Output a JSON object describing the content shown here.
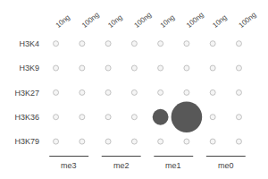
{
  "chart_data": {
    "type": "dot_matrix",
    "rows": [
      "H3K4",
      "H3K9",
      "H3K27",
      "H3K36",
      "H3K79"
    ],
    "categories": [
      "10ng",
      "100ng",
      "10ng",
      "100ng",
      "10ng",
      "100ng",
      "10ng",
      "100ng"
    ],
    "groups": [
      "me3",
      "me2",
      "me1",
      "me0"
    ],
    "sizes": [
      [
        null,
        null,
        null,
        null,
        null,
        null,
        null,
        null
      ],
      [
        null,
        null,
        null,
        null,
        null,
        null,
        null,
        null
      ],
      [
        null,
        null,
        null,
        null,
        null,
        null,
        null,
        null
      ],
      [
        null,
        null,
        null,
        null,
        80,
        300,
        null,
        null
      ],
      [
        null,
        null,
        null,
        null,
        null,
        null,
        null,
        null
      ]
    ],
    "color": "#111111",
    "empty_color": "#f5f5f5",
    "edge_color": "#aaaaaa",
    "grid": false
  }
}
